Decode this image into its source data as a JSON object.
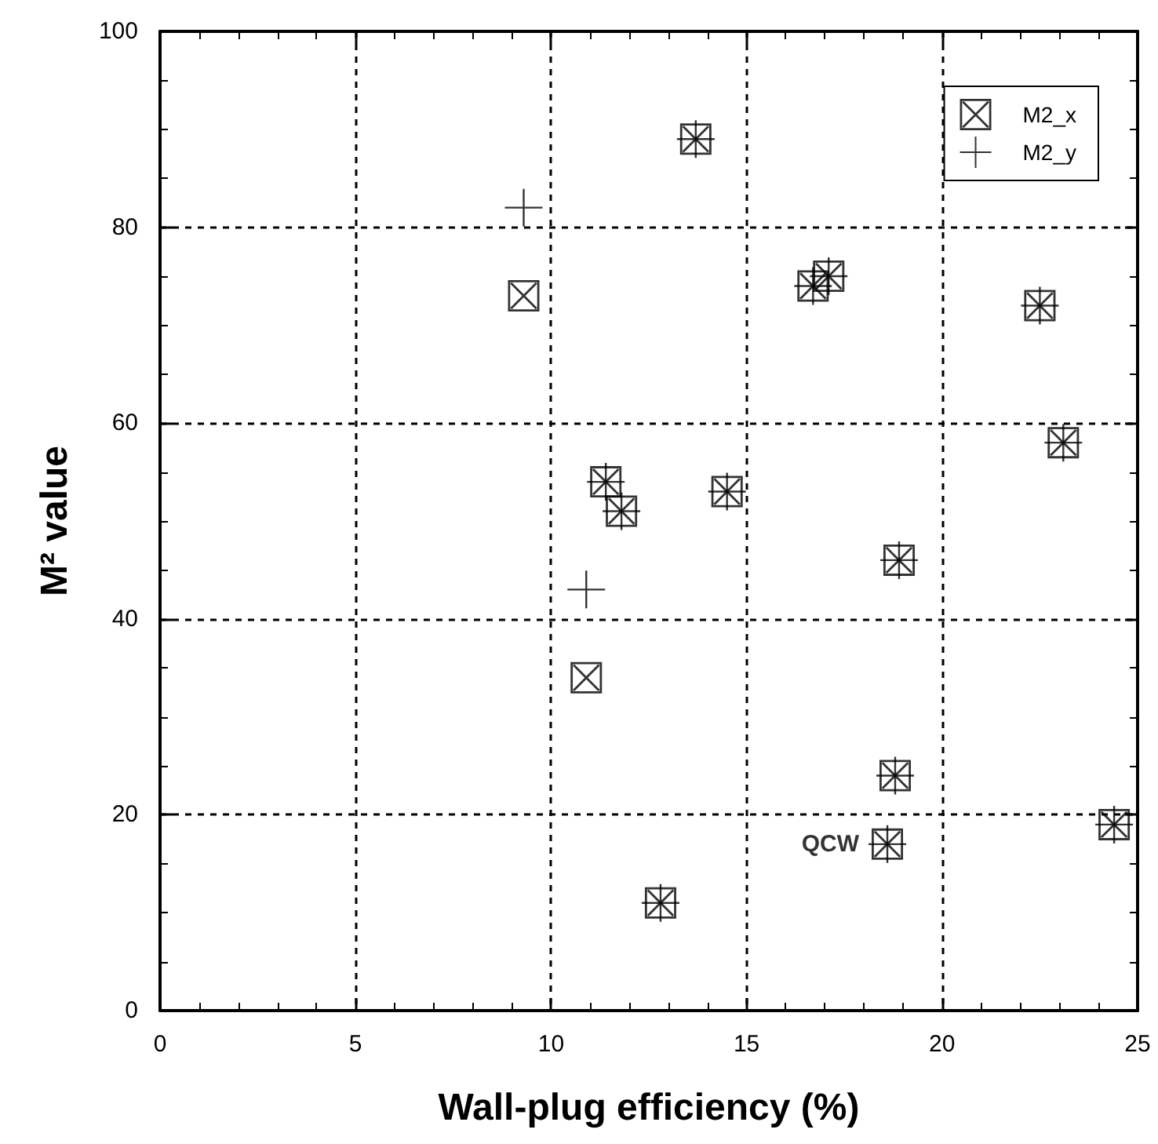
{
  "chart_data": {
    "type": "scatter",
    "xlabel": "Wall-plug efficiency (%)",
    "ylabel": "M² value",
    "xlim": [
      0,
      25
    ],
    "xticks": [
      0,
      5,
      10,
      15,
      20,
      25
    ],
    "ylim": [
      0,
      100
    ],
    "yticks": [
      0,
      20,
      40,
      60,
      80,
      100
    ],
    "grid": true,
    "legend": "top right",
    "annotations": [
      {
        "text": "QCW",
        "x": 18.6,
        "y": 17
      }
    ],
    "series": [
      {
        "name": "M2_x",
        "color": "#000000",
        "marker": "square",
        "x": [
          9.3,
          13.7,
          11.4,
          11.8,
          14.5,
          16.7,
          17.1,
          22.5,
          23.1,
          18.9,
          10.9,
          18.8,
          18.6,
          12.8,
          24.4
        ],
        "values": [
          73,
          89,
          54,
          51,
          53,
          74,
          75,
          72,
          58,
          46,
          34,
          24,
          17,
          11,
          19
        ]
      },
      {
        "name": "M2_y",
        "color": "#000000",
        "marker": "cross",
        "x": [
          9.3,
          10.9,
          13.7,
          11.4,
          11.8,
          14.5,
          16.7,
          17.1,
          22.5,
          23.1,
          18.9,
          18.8,
          18.6,
          12.8,
          24.4
        ],
        "values": [
          82,
          43,
          89,
          54,
          51,
          53,
          74,
          75,
          72,
          58,
          46,
          24,
          17,
          11,
          19
        ]
      }
    ]
  }
}
